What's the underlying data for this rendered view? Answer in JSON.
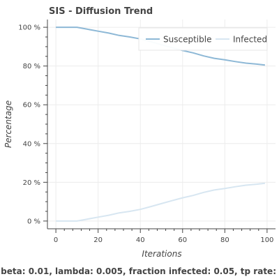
{
  "chart_data": {
    "type": "line",
    "title": "SIS - Diffusion Trend",
    "xlabel": "Iterations",
    "ylabel": "Percentage",
    "xlim": [
      -4,
      104
    ],
    "ylim": [
      -0.04,
      1.04
    ],
    "xticks": [
      0,
      20,
      40,
      60,
      80,
      100
    ],
    "yticks": [
      {
        "value": 0,
        "label": "0 %"
      },
      {
        "value": 0.2,
        "label": "20 %"
      },
      {
        "value": 0.4,
        "label": "40 %"
      },
      {
        "value": 0.6,
        "label": "60 %"
      },
      {
        "value": 0.8,
        "label": "80 %"
      },
      {
        "value": 1.0,
        "label": "100 %"
      }
    ],
    "grid": true,
    "legend_position": "top-right",
    "x": [
      0,
      5,
      10,
      15,
      20,
      25,
      30,
      35,
      40,
      45,
      50,
      55,
      60,
      65,
      70,
      75,
      80,
      85,
      90,
      95,
      99
    ],
    "series": [
      {
        "name": "Susceptible",
        "color": "#8db8d6",
        "values": [
          1.0,
          1.0,
          1.0,
          0.99,
          0.98,
          0.97,
          0.958,
          0.95,
          0.94,
          0.925,
          0.91,
          0.895,
          0.88,
          0.868,
          0.852,
          0.84,
          0.832,
          0.823,
          0.815,
          0.81,
          0.805
        ]
      },
      {
        "name": "Infected",
        "color": "#d7e6f1",
        "values": [
          0.0,
          0.0,
          0.0,
          0.01,
          0.02,
          0.03,
          0.042,
          0.05,
          0.06,
          0.075,
          0.09,
          0.105,
          0.12,
          0.132,
          0.148,
          0.16,
          0.168,
          0.177,
          0.185,
          0.19,
          0.195
        ]
      }
    ],
    "caption": "beta: 0.01, lambda: 0.005, fraction infected: 0.05, tp rate:"
  }
}
